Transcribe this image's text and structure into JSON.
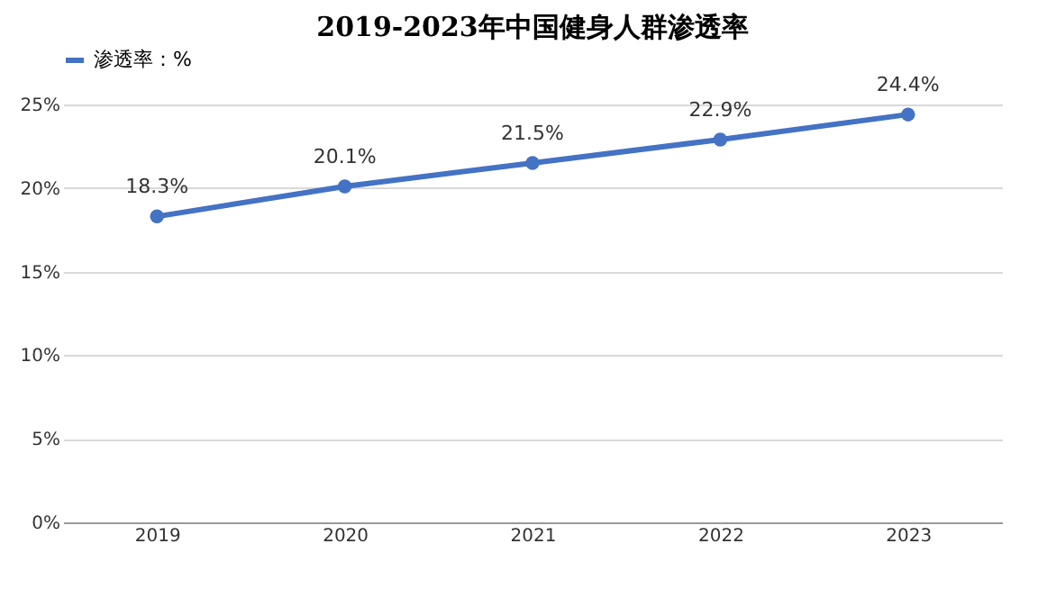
{
  "chart_data": {
    "type": "line",
    "title": "2019-2023年中国健身人群渗透率",
    "categories": [
      "2019",
      "2020",
      "2021",
      "2022",
      "2023"
    ],
    "series": [
      {
        "name": "渗透率：%",
        "color": "#4472c4",
        "values": [
          18.3,
          20.1,
          21.5,
          22.9,
          24.4
        ],
        "value_labels": [
          "18.3%",
          "20.1%",
          "21.5%",
          "22.9%",
          "24.4%"
        ]
      }
    ],
    "ylim": [
      0,
      25
    ],
    "yticks": [
      {
        "value": 0,
        "label": "0%"
      },
      {
        "value": 5,
        "label": "5%"
      },
      {
        "value": 10,
        "label": "10%"
      },
      {
        "value": 15,
        "label": "15%"
      },
      {
        "value": 20,
        "label": "20%"
      },
      {
        "value": 25,
        "label": "25%"
      }
    ],
    "grid": "y",
    "legend": "top",
    "marker": "circle",
    "line_style": "solid"
  }
}
